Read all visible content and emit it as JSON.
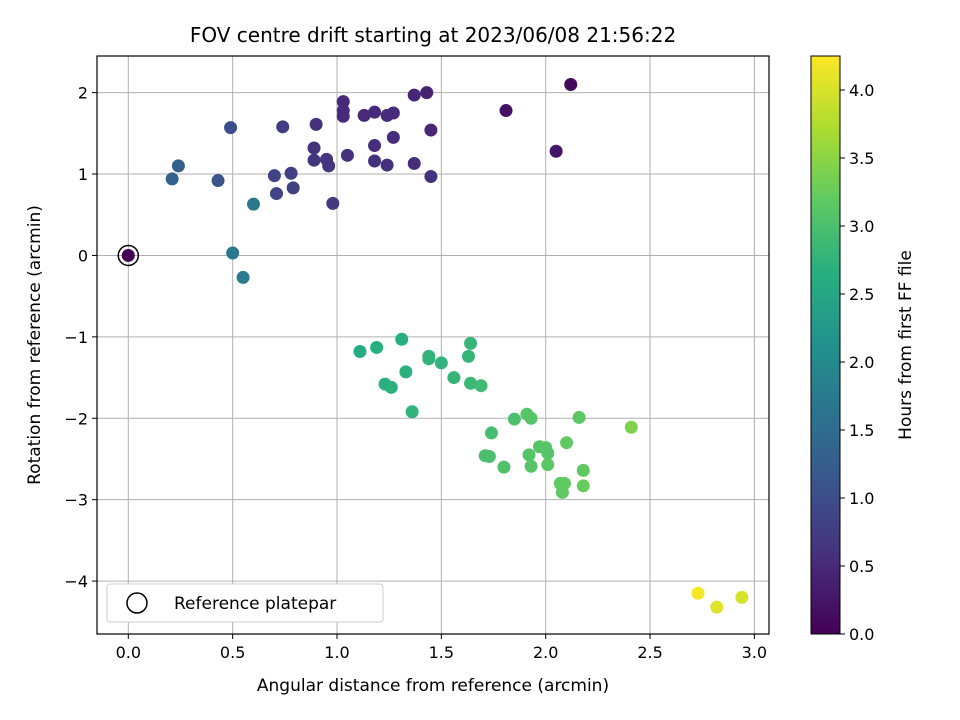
{
  "chart_data": {
    "type": "scatter",
    "title": "FOV centre drift starting at 2023/06/08 21:56:22",
    "xlabel": "Angular distance from reference (arcmin)",
    "ylabel": "Rotation from reference (arcmin)",
    "xlim": [
      -0.15,
      3.07
    ],
    "ylim": [
      -4.65,
      2.45
    ],
    "xticks": [
      0.0,
      0.5,
      1.0,
      1.5,
      2.0,
      2.5,
      3.0
    ],
    "xtick_labels": [
      "0.0",
      "0.5",
      "1.0",
      "1.5",
      "2.0",
      "2.5",
      "3.0"
    ],
    "yticks": [
      -4,
      -3,
      -2,
      -1,
      0,
      1,
      2
    ],
    "ytick_labels": [
      "−4",
      "−3",
      "−2",
      "−1",
      "0",
      "1",
      "2"
    ],
    "grid": true,
    "colormap": "viridis",
    "colorbar": {
      "label": "Hours from first FF file",
      "range": [
        0.0,
        4.25
      ],
      "ticks": [
        0.0,
        0.5,
        1.0,
        1.5,
        2.0,
        2.5,
        3.0,
        3.5,
        4.0
      ],
      "tick_labels": [
        "0.0",
        "0.5",
        "1.0",
        "1.5",
        "2.0",
        "2.5",
        "3.0",
        "3.5",
        "4.0"
      ]
    },
    "legend": {
      "placement": "lower-left",
      "entries": [
        "Reference platepar"
      ]
    },
    "reference": {
      "x": 0.0,
      "y": 0.0,
      "label": "Reference platepar"
    },
    "points": [
      {
        "x": 0.0,
        "y": 0.0,
        "c": 0.0
      },
      {
        "x": 2.12,
        "y": 2.1,
        "c": 0.1
      },
      {
        "x": 1.81,
        "y": 1.78,
        "c": 0.2
      },
      {
        "x": 2.05,
        "y": 1.28,
        "c": 0.25
      },
      {
        "x": 1.43,
        "y": 2.0,
        "c": 0.4
      },
      {
        "x": 1.37,
        "y": 1.97,
        "c": 0.45
      },
      {
        "x": 1.45,
        "y": 1.54,
        "c": 0.45
      },
      {
        "x": 1.03,
        "y": 1.89,
        "c": 0.5
      },
      {
        "x": 1.03,
        "y": 1.78,
        "c": 0.5
      },
      {
        "x": 1.03,
        "y": 1.71,
        "c": 0.5
      },
      {
        "x": 1.13,
        "y": 1.72,
        "c": 0.5
      },
      {
        "x": 1.18,
        "y": 1.76,
        "c": 0.5
      },
      {
        "x": 1.24,
        "y": 1.72,
        "c": 0.5
      },
      {
        "x": 1.27,
        "y": 1.75,
        "c": 0.5
      },
      {
        "x": 1.27,
        "y": 1.45,
        "c": 0.55
      },
      {
        "x": 1.18,
        "y": 1.35,
        "c": 0.55
      },
      {
        "x": 1.05,
        "y": 1.23,
        "c": 0.6
      },
      {
        "x": 1.18,
        "y": 1.16,
        "c": 0.6
      },
      {
        "x": 1.24,
        "y": 1.11,
        "c": 0.6
      },
      {
        "x": 1.37,
        "y": 1.13,
        "c": 0.55
      },
      {
        "x": 1.45,
        "y": 0.97,
        "c": 0.6
      },
      {
        "x": 0.9,
        "y": 1.61,
        "c": 0.6
      },
      {
        "x": 0.89,
        "y": 1.32,
        "c": 0.6
      },
      {
        "x": 0.89,
        "y": 1.17,
        "c": 0.65
      },
      {
        "x": 0.95,
        "y": 1.18,
        "c": 0.65
      },
      {
        "x": 0.96,
        "y": 1.1,
        "c": 0.65
      },
      {
        "x": 0.98,
        "y": 0.64,
        "c": 0.7
      },
      {
        "x": 0.74,
        "y": 1.58,
        "c": 0.75
      },
      {
        "x": 0.78,
        "y": 1.01,
        "c": 0.8
      },
      {
        "x": 0.79,
        "y": 0.83,
        "c": 0.8
      },
      {
        "x": 0.7,
        "y": 0.98,
        "c": 0.85
      },
      {
        "x": 0.71,
        "y": 0.76,
        "c": 0.85
      },
      {
        "x": 0.49,
        "y": 1.57,
        "c": 1.0
      },
      {
        "x": 0.43,
        "y": 0.92,
        "c": 1.1
      },
      {
        "x": 0.24,
        "y": 1.1,
        "c": 1.3
      },
      {
        "x": 0.21,
        "y": 0.94,
        "c": 1.35
      },
      {
        "x": 0.6,
        "y": 0.63,
        "c": 1.7
      },
      {
        "x": 0.5,
        "y": 0.03,
        "c": 1.7
      },
      {
        "x": 0.55,
        "y": -0.27,
        "c": 1.75
      },
      {
        "x": 1.11,
        "y": -1.18,
        "c": 2.6
      },
      {
        "x": 1.19,
        "y": -1.13,
        "c": 2.65
      },
      {
        "x": 1.31,
        "y": -1.03,
        "c": 2.65
      },
      {
        "x": 1.23,
        "y": -1.58,
        "c": 2.7
      },
      {
        "x": 1.26,
        "y": -1.62,
        "c": 2.7
      },
      {
        "x": 1.33,
        "y": -1.43,
        "c": 2.7
      },
      {
        "x": 1.36,
        "y": -1.92,
        "c": 2.75
      },
      {
        "x": 1.44,
        "y": -1.27,
        "c": 2.75
      },
      {
        "x": 1.44,
        "y": -1.24,
        "c": 2.75
      },
      {
        "x": 1.5,
        "y": -1.32,
        "c": 2.75
      },
      {
        "x": 1.56,
        "y": -1.5,
        "c": 2.8
      },
      {
        "x": 1.64,
        "y": -1.08,
        "c": 2.8
      },
      {
        "x": 1.63,
        "y": -1.24,
        "c": 2.8
      },
      {
        "x": 1.64,
        "y": -1.57,
        "c": 2.85
      },
      {
        "x": 1.69,
        "y": -1.6,
        "c": 2.9
      },
      {
        "x": 1.74,
        "y": -2.18,
        "c": 2.95
      },
      {
        "x": 1.71,
        "y": -2.46,
        "c": 3.0
      },
      {
        "x": 1.73,
        "y": -2.47,
        "c": 3.0
      },
      {
        "x": 1.8,
        "y": -2.6,
        "c": 3.05
      },
      {
        "x": 1.85,
        "y": -2.01,
        "c": 3.0
      },
      {
        "x": 1.91,
        "y": -1.95,
        "c": 3.1
      },
      {
        "x": 1.93,
        "y": -2.0,
        "c": 3.1
      },
      {
        "x": 1.92,
        "y": -2.45,
        "c": 3.1
      },
      {
        "x": 1.93,
        "y": -2.59,
        "c": 3.1
      },
      {
        "x": 1.97,
        "y": -2.35,
        "c": 3.1
      },
      {
        "x": 2.0,
        "y": -2.36,
        "c": 3.1
      },
      {
        "x": 2.01,
        "y": -2.43,
        "c": 3.1
      },
      {
        "x": 2.01,
        "y": -2.57,
        "c": 3.15
      },
      {
        "x": 2.07,
        "y": -2.8,
        "c": 3.2
      },
      {
        "x": 2.08,
        "y": -2.91,
        "c": 3.2
      },
      {
        "x": 2.09,
        "y": -2.8,
        "c": 3.2
      },
      {
        "x": 2.1,
        "y": -2.3,
        "c": 3.2
      },
      {
        "x": 2.16,
        "y": -1.99,
        "c": 3.15
      },
      {
        "x": 2.18,
        "y": -2.64,
        "c": 3.2
      },
      {
        "x": 2.18,
        "y": -2.83,
        "c": 3.25
      },
      {
        "x": 2.41,
        "y": -2.11,
        "c": 3.4
      },
      {
        "x": 2.73,
        "y": -4.15,
        "c": 4.2
      },
      {
        "x": 2.82,
        "y": -4.32,
        "c": 4.05
      },
      {
        "x": 2.94,
        "y": -4.2,
        "c": 4.0
      }
    ]
  }
}
